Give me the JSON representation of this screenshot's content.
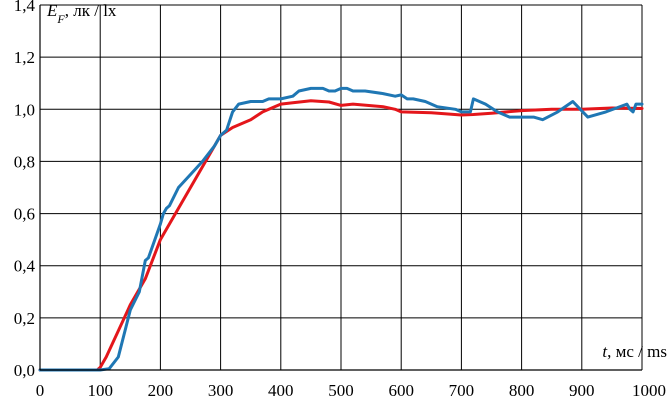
{
  "chart_data": {
    "type": "line",
    "ylabel": {
      "symbol": "E",
      "subscript": "F",
      "unit": ", лк / lx"
    },
    "xlabel": {
      "symbol": "t",
      "unit": ", мс / ms"
    },
    "xlim": [
      0,
      1000
    ],
    "ylim": [
      0,
      1.4
    ],
    "x_ticks": [
      "0",
      "100",
      "200",
      "300",
      "400",
      "500",
      "600",
      "700",
      "800",
      "900",
      "1000"
    ],
    "y_ticks": [
      "0,0",
      "0,2",
      "0,4",
      "0,6",
      "0,8",
      "1,0",
      "1,2",
      "1,4"
    ],
    "grid": true,
    "series": [
      {
        "color": "#e4161b",
        "points": [
          [
            0,
            0.0
          ],
          [
            95,
            0.0
          ],
          [
            100,
            0.01
          ],
          [
            110,
            0.05
          ],
          [
            130,
            0.15
          ],
          [
            150,
            0.25
          ],
          [
            175,
            0.35
          ],
          [
            200,
            0.5
          ],
          [
            250,
            0.7
          ],
          [
            300,
            0.9
          ],
          [
            320,
            0.93
          ],
          [
            350,
            0.96
          ],
          [
            370,
            0.99
          ],
          [
            400,
            1.02
          ],
          [
            420,
            1.025
          ],
          [
            450,
            1.033
          ],
          [
            480,
            1.028
          ],
          [
            500,
            1.015
          ],
          [
            520,
            1.02
          ],
          [
            570,
            1.01
          ],
          [
            590,
            1.0
          ],
          [
            600,
            0.99
          ],
          [
            650,
            0.987
          ],
          [
            700,
            0.978
          ],
          [
            720,
            0.98
          ],
          [
            750,
            0.985
          ],
          [
            800,
            0.995
          ],
          [
            850,
            1.0
          ],
          [
            900,
            1.0
          ],
          [
            950,
            1.005
          ],
          [
            1000,
            1.003
          ]
        ]
      },
      {
        "color": "#1f77b4",
        "points": [
          [
            0,
            0.0
          ],
          [
            100,
            0.0
          ],
          [
            115,
            0.005
          ],
          [
            130,
            0.05
          ],
          [
            150,
            0.23
          ],
          [
            165,
            0.3
          ],
          [
            175,
            0.42
          ],
          [
            180,
            0.43
          ],
          [
            200,
            0.56
          ],
          [
            205,
            0.6
          ],
          [
            210,
            0.62
          ],
          [
            215,
            0.63
          ],
          [
            230,
            0.7
          ],
          [
            250,
            0.75
          ],
          [
            270,
            0.8
          ],
          [
            290,
            0.86
          ],
          [
            300,
            0.9
          ],
          [
            310,
            0.92
          ],
          [
            320,
            0.99
          ],
          [
            330,
            1.02
          ],
          [
            350,
            1.03
          ],
          [
            370,
            1.03
          ],
          [
            380,
            1.04
          ],
          [
            400,
            1.04
          ],
          [
            420,
            1.05
          ],
          [
            430,
            1.07
          ],
          [
            450,
            1.08
          ],
          [
            470,
            1.08
          ],
          [
            480,
            1.07
          ],
          [
            490,
            1.07
          ],
          [
            500,
            1.08
          ],
          [
            510,
            1.08
          ],
          [
            520,
            1.07
          ],
          [
            540,
            1.07
          ],
          [
            570,
            1.06
          ],
          [
            590,
            1.05
          ],
          [
            600,
            1.055
          ],
          [
            610,
            1.04
          ],
          [
            620,
            1.04
          ],
          [
            640,
            1.03
          ],
          [
            660,
            1.01
          ],
          [
            690,
            1.0
          ],
          [
            700,
            0.99
          ],
          [
            715,
            0.99
          ],
          [
            720,
            1.04
          ],
          [
            740,
            1.02
          ],
          [
            760,
            0.99
          ],
          [
            780,
            0.97
          ],
          [
            800,
            0.97
          ],
          [
            820,
            0.97
          ],
          [
            835,
            0.96
          ],
          [
            860,
            0.99
          ],
          [
            885,
            1.03
          ],
          [
            910,
            0.97
          ],
          [
            940,
            0.99
          ],
          [
            975,
            1.02
          ],
          [
            980,
            1.0
          ],
          [
            985,
            0.99
          ],
          [
            990,
            1.02
          ],
          [
            1000,
            1.02
          ]
        ]
      }
    ]
  }
}
